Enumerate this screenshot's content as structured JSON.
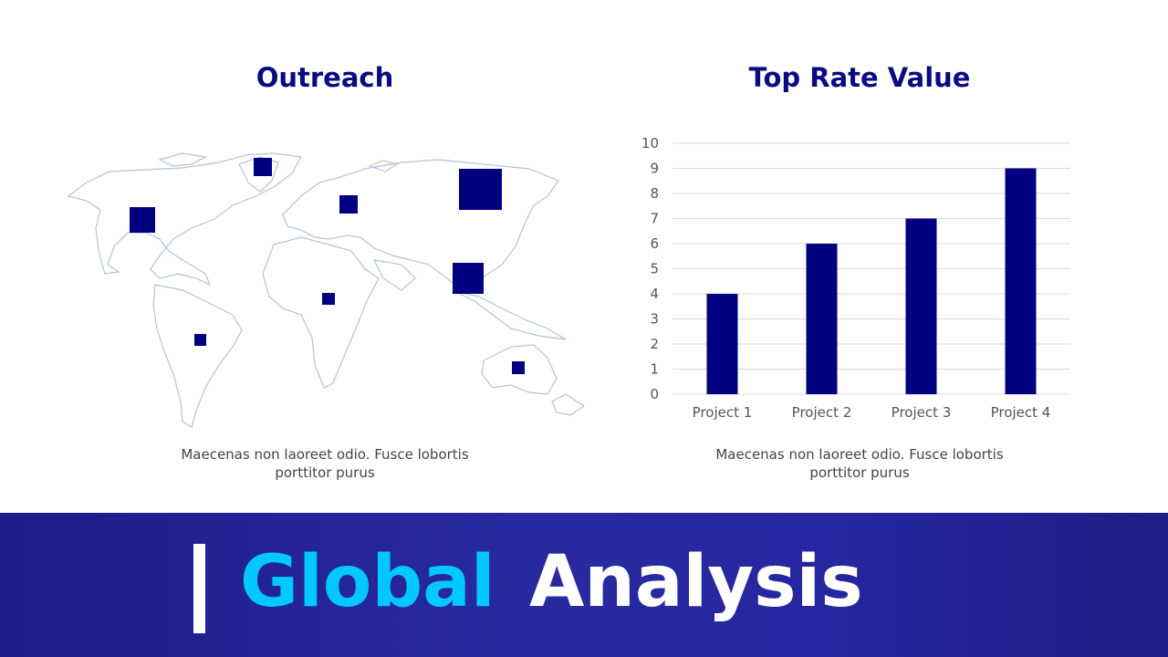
{
  "outreach": {
    "title": "Outreach",
    "caption": "Maecenas non laoreet odio. Fusce lobortis porttitor purus"
  },
  "chart_data": {
    "type": "bar",
    "title": "Top Rate Value",
    "categories": [
      "Project 1",
      "Project 2",
      "Project 3",
      "Project 4"
    ],
    "values": [
      4,
      6,
      7,
      9
    ],
    "color": "#000080",
    "ylim": [
      0,
      10
    ],
    "yticks": [
      0,
      1,
      2,
      3,
      4,
      5,
      6,
      7,
      8,
      9,
      10
    ],
    "grid": true,
    "caption": "Maecenas non laoreet odio. Fusce lobortis porttitor purus"
  },
  "banner": {
    "highlight": "Global",
    "rest": "Analysis"
  }
}
